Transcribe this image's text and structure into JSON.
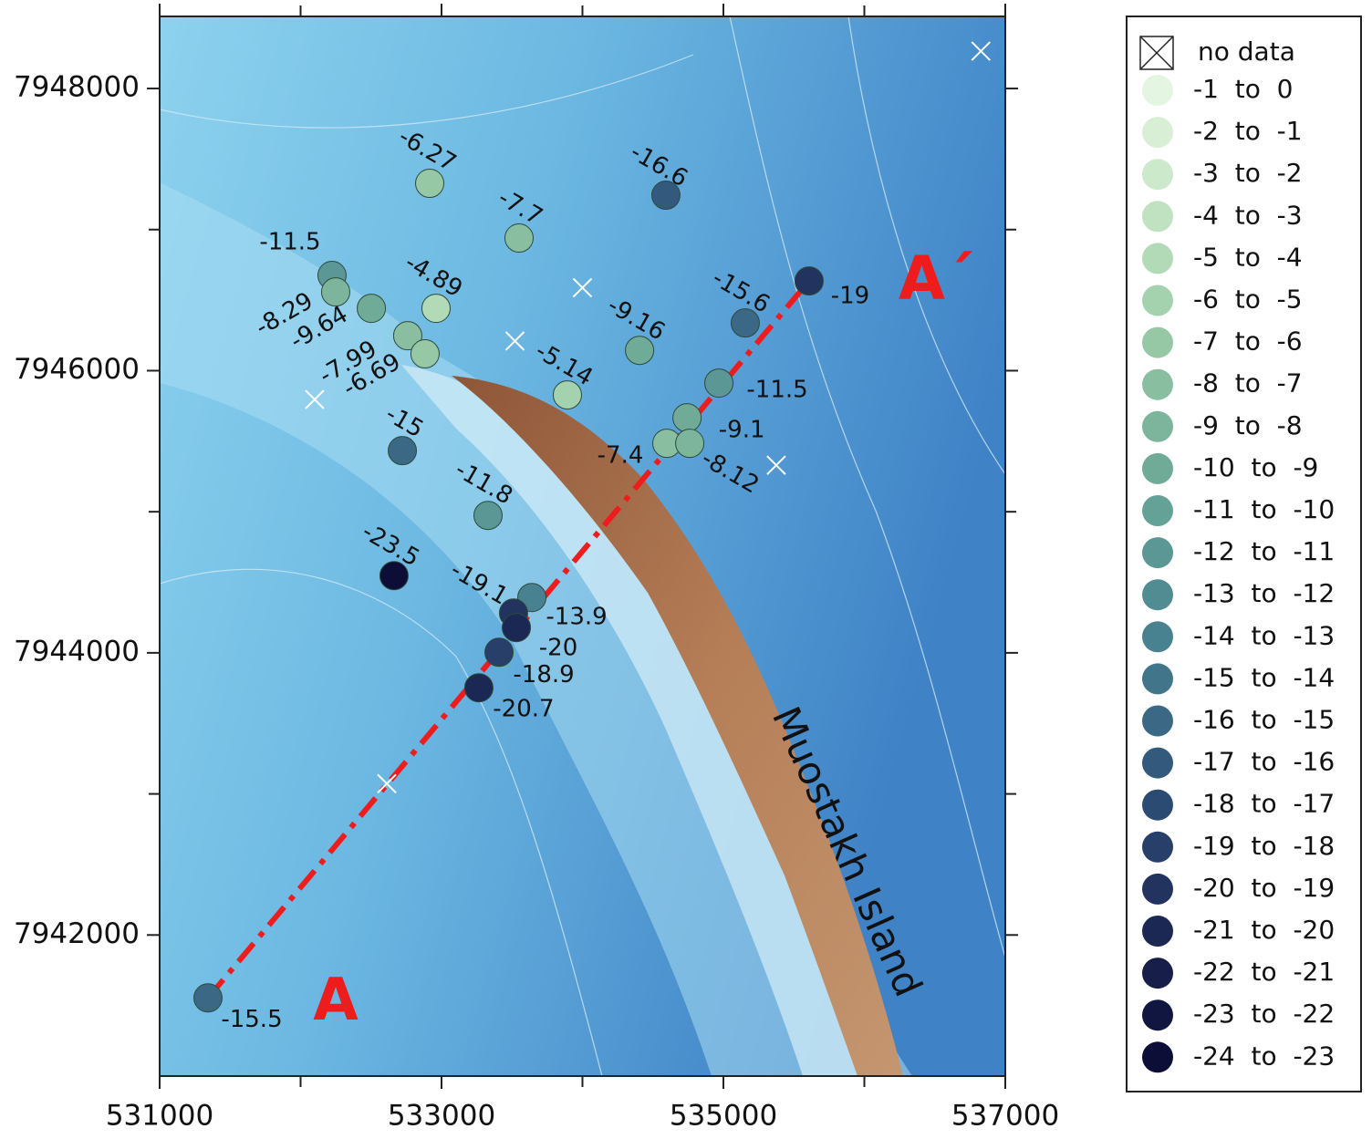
{
  "map": {
    "xlim": [
      531000,
      537000
    ],
    "ylim": [
      7941000,
      7948511
    ],
    "xticks": [
      531000,
      533000,
      535000,
      537000
    ],
    "xminor": [
      532000,
      534000,
      536000
    ],
    "yticks": [
      7942000,
      7944000,
      7946000,
      7948000
    ],
    "yminor": [
      7943000,
      7945000,
      7947000
    ],
    "points": [
      {
        "x": 532916,
        "y": 7947328,
        "value": -6.27
      },
      {
        "x": 534592,
        "y": 7947244,
        "value": -16.6
      },
      {
        "x": 533550,
        "y": 7946940,
        "value": -7.7
      },
      {
        "x": 532223,
        "y": 7946675,
        "value": -11.5
      },
      {
        "x": 532249,
        "y": 7946558,
        "value": -8.29
      },
      {
        "x": 532502,
        "y": 7946442,
        "value": -9.64
      },
      {
        "x": 532961,
        "y": 7946442,
        "value": -4.89
      },
      {
        "x": 532760,
        "y": 7946248,
        "value": -7.99
      },
      {
        "x": 532883,
        "y": 7946119,
        "value": -6.69
      },
      {
        "x": 535608,
        "y": 7946636,
        "value": -19
      },
      {
        "x": 535155,
        "y": 7946338,
        "value": -15.6
      },
      {
        "x": 534405,
        "y": 7946144,
        "value": -9.16
      },
      {
        "x": 533893,
        "y": 7945828,
        "value": -5.14
      },
      {
        "x": 534968,
        "y": 7945912,
        "value": -11.5
      },
      {
        "x": 534742,
        "y": 7945666,
        "value": -9.1
      },
      {
        "x": 534599,
        "y": 7945485,
        "value": -7.4
      },
      {
        "x": 534761,
        "y": 7945485,
        "value": -8.12
      },
      {
        "x": 532722,
        "y": 7945433,
        "value": -15
      },
      {
        "x": 533330,
        "y": 7944974,
        "value": -11.8
      },
      {
        "x": 532663,
        "y": 7944547,
        "value": -23.5
      },
      {
        "x": 533641,
        "y": 7944392,
        "value": -13.9
      },
      {
        "x": 533511,
        "y": 7944282,
        "value": -19.1
      },
      {
        "x": 533531,
        "y": 7944179,
        "value": -20
      },
      {
        "x": 533408,
        "y": 7944004,
        "value": -18.9
      },
      {
        "x": 533265,
        "y": 7943752,
        "value": -20.7
      },
      {
        "x": 531343,
        "y": 7941554,
        "value": -15.5
      }
    ],
    "no_data": [
      {
        "x": 536827,
        "y": 7948265
      },
      {
        "x": 534000,
        "y": 7946588
      },
      {
        "x": 533521,
        "y": 7946210
      },
      {
        "x": 532100,
        "y": 7945796
      },
      {
        "x": 535375,
        "y": 7945330
      },
      {
        "x": 532612,
        "y": 7943073
      }
    ],
    "profile": {
      "start_label": "A",
      "end_label": "A´"
    },
    "island_label": "Muostakh Island",
    "legend": {
      "no_data_label": "no data",
      "bins": [
        {
          "label": "-1  to  0",
          "from": -1,
          "to": 0,
          "color": "#e4f5e2"
        },
        {
          "label": "-2  to  -1",
          "from": -2,
          "to": -1,
          "color": "#d8efd6"
        },
        {
          "label": "-3  to  -2",
          "from": -3,
          "to": -2,
          "color": "#cce9cb"
        },
        {
          "label": "-4  to  -3",
          "from": -4,
          "to": -3,
          "color": "#c0e2c1"
        },
        {
          "label": "-5  to  -4",
          "from": -5,
          "to": -4,
          "color": "#b2dab7"
        },
        {
          "label": "-6  to  -5",
          "from": -6,
          "to": -5,
          "color": "#a4d1ae"
        },
        {
          "label": "-7  to  -6",
          "from": -7,
          "to": -6,
          "color": "#96c8a5"
        },
        {
          "label": "-8  to  -7",
          "from": -8,
          "to": -7,
          "color": "#89bfa0"
        },
        {
          "label": "-9  to  -8",
          "from": -9,
          "to": -8,
          "color": "#7cb59c"
        },
        {
          "label": "-10  to  -9",
          "from": -10,
          "to": -9,
          "color": "#70ab98"
        },
        {
          "label": "-11  to  -10",
          "from": -11,
          "to": -10,
          "color": "#64a196"
        },
        {
          "label": "-12  to  -11",
          "from": -12,
          "to": -11,
          "color": "#5a9795"
        },
        {
          "label": "-13  to  -12",
          "from": -13,
          "to": -12,
          "color": "#518c92"
        },
        {
          "label": "-14  to  -13",
          "from": -14,
          "to": -13,
          "color": "#48818f"
        },
        {
          "label": "-15  to  -14",
          "from": -15,
          "to": -14,
          "color": "#41758a"
        },
        {
          "label": "-16  to  -15",
          "from": -16,
          "to": -15,
          "color": "#3a6885"
        },
        {
          "label": "-17  to  -16",
          "from": -17,
          "to": -16,
          "color": "#33597d"
        },
        {
          "label": "-18  to  -17",
          "from": -18,
          "to": -17,
          "color": "#2c4b73"
        },
        {
          "label": "-19  to  -18",
          "from": -19,
          "to": -18,
          "color": "#273f69"
        },
        {
          "label": "-20  to  -19",
          "from": -20,
          "to": -19,
          "color": "#21335e"
        },
        {
          "label": "-21  to  -20",
          "from": -21,
          "to": -20,
          "color": "#1b2853"
        },
        {
          "label": "-22  to  -21",
          "from": -22,
          "to": -21,
          "color": "#161e49"
        },
        {
          "label": "-23  to  -22",
          "from": -23,
          "to": -22,
          "color": "#111640"
        },
        {
          "label": "-24  to  -23",
          "from": -24,
          "to": -23,
          "color": "#0c0e37"
        }
      ]
    }
  }
}
